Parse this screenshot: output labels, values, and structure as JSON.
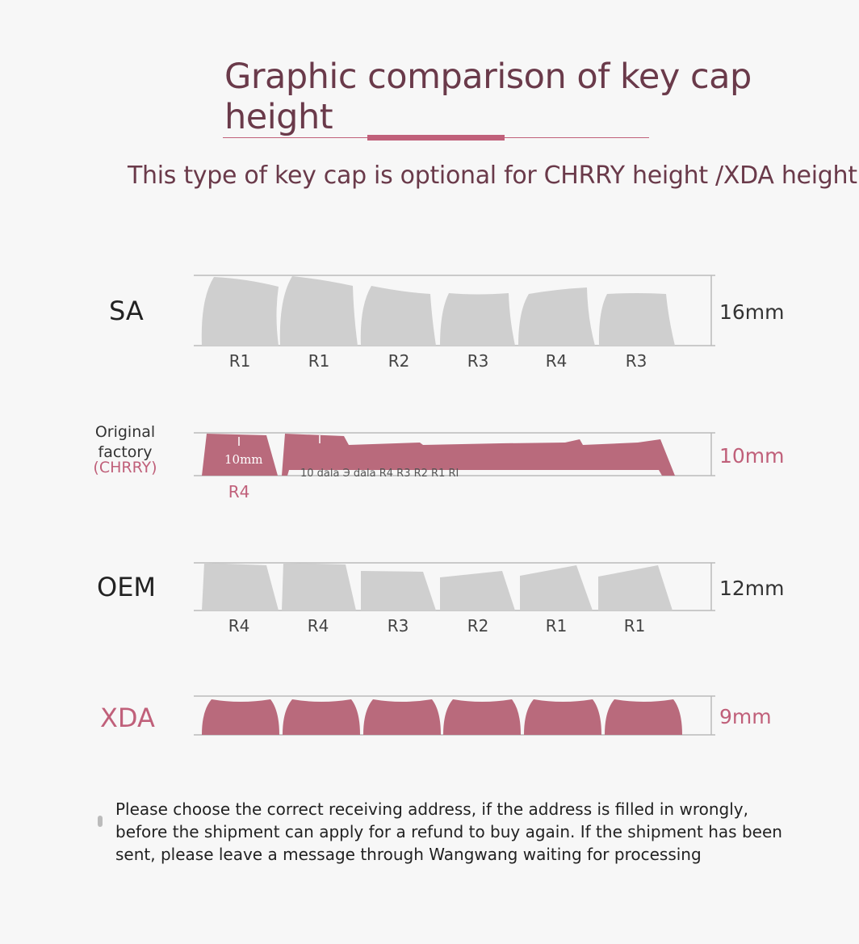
{
  "title": "Graphic comparison of key cap height",
  "subtitle": "This type of key cap is optional for CHRRY height /XDA height",
  "colors": {
    "accent": "#c0607a",
    "gray_cap": "#cfcfcf",
    "title": "#6a3a4a"
  },
  "profiles": [
    {
      "name": "SA",
      "height": "16mm",
      "rows": [
        "R1",
        "R1",
        "R2",
        "R3",
        "R4",
        "R3"
      ]
    },
    {
      "name_lines": [
        "Original",
        "factory",
        "(CHRRY)"
      ],
      "height": "10mm",
      "rows": [
        "R4"
      ],
      "cap_label": "10mm",
      "overlay_text": "10 dala Э dala R4 R3 R2 R1 RI"
    },
    {
      "name": "OEM",
      "height": "12mm",
      "rows": [
        "R4",
        "R4",
        "R3",
        "R2",
        "R1",
        "R1"
      ]
    },
    {
      "name": "XDA",
      "height": "9mm"
    }
  ],
  "note": "Please choose the correct receiving address, if the address is filled in wrongly, before the shipment can apply for a refund to buy again. If the shipment has been sent, please leave a message through Wangwang waiting for processing"
}
